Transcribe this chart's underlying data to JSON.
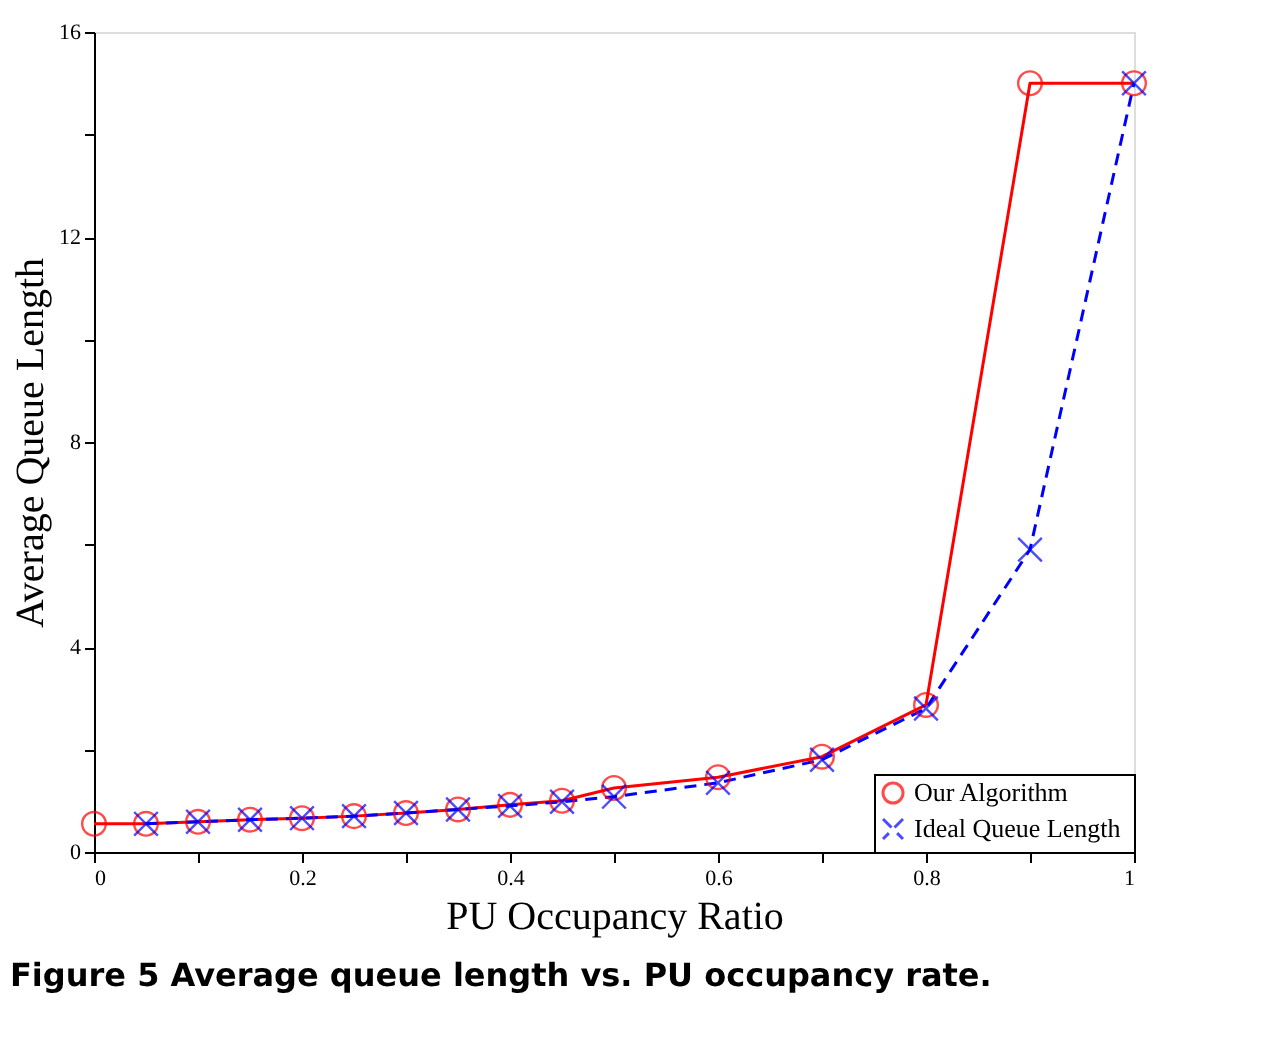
{
  "chart_data": {
    "type": "line",
    "xlabel": "PU Occupancy Ratio",
    "ylabel": "Average Queue Length",
    "annotations": [
      "Figure 5 Average queue length vs. PU occupancy rate."
    ],
    "xlim": [
      0,
      1
    ],
    "ylim": [
      0,
      16
    ],
    "xticks": [
      0,
      {
        "value": 0.1,
        "label": null
      },
      0.2,
      {
        "value": 0.3,
        "label": null
      },
      0.4,
      {
        "value": 0.5,
        "label": null
      },
      0.6,
      {
        "value": 0.7,
        "label": null
      },
      0.8,
      {
        "value": 0.9,
        "label": null
      },
      1
    ],
    "yticks": [
      0,
      {
        "value": 2,
        "label": null
      },
      4,
      {
        "value": 6,
        "label": null
      },
      8,
      {
        "value": 10,
        "label": null
      },
      12,
      {
        "value": 14,
        "label": null
      },
      16
    ],
    "grid": false,
    "legend": "bottom right",
    "series": [
      {
        "name": "Our Algorithm",
        "color": "#ff0000",
        "marker": "circle",
        "line_style": "solid",
        "x": [
          0,
          0.05,
          0.1,
          0.15,
          0.2,
          0.25,
          0.3,
          0.35,
          0.4,
          0.45,
          0.5,
          0.6,
          0.7,
          0.8,
          0.9,
          1
        ],
        "values": [
          0.55,
          0.55,
          0.59,
          0.63,
          0.66,
          0.7,
          0.76,
          0.83,
          0.92,
          1.0,
          1.25,
          1.46,
          1.86,
          2.87,
          15,
          15
        ]
      },
      {
        "name": "Ideal  Queue Length",
        "color": "#0000ff",
        "marker": "cross",
        "line_style": "dashed",
        "x": [
          0.05,
          0.1,
          0.15,
          0.2,
          0.25,
          0.3,
          0.35,
          0.4,
          0.45,
          0.5,
          0.6,
          0.7,
          0.8,
          0.9,
          1
        ],
        "values": [
          0.55,
          0.59,
          0.63,
          0.66,
          0.7,
          0.76,
          0.83,
          0.9,
          0.98,
          1.08,
          1.35,
          1.8,
          2.8,
          5.9,
          15
        ]
      }
    ]
  }
}
